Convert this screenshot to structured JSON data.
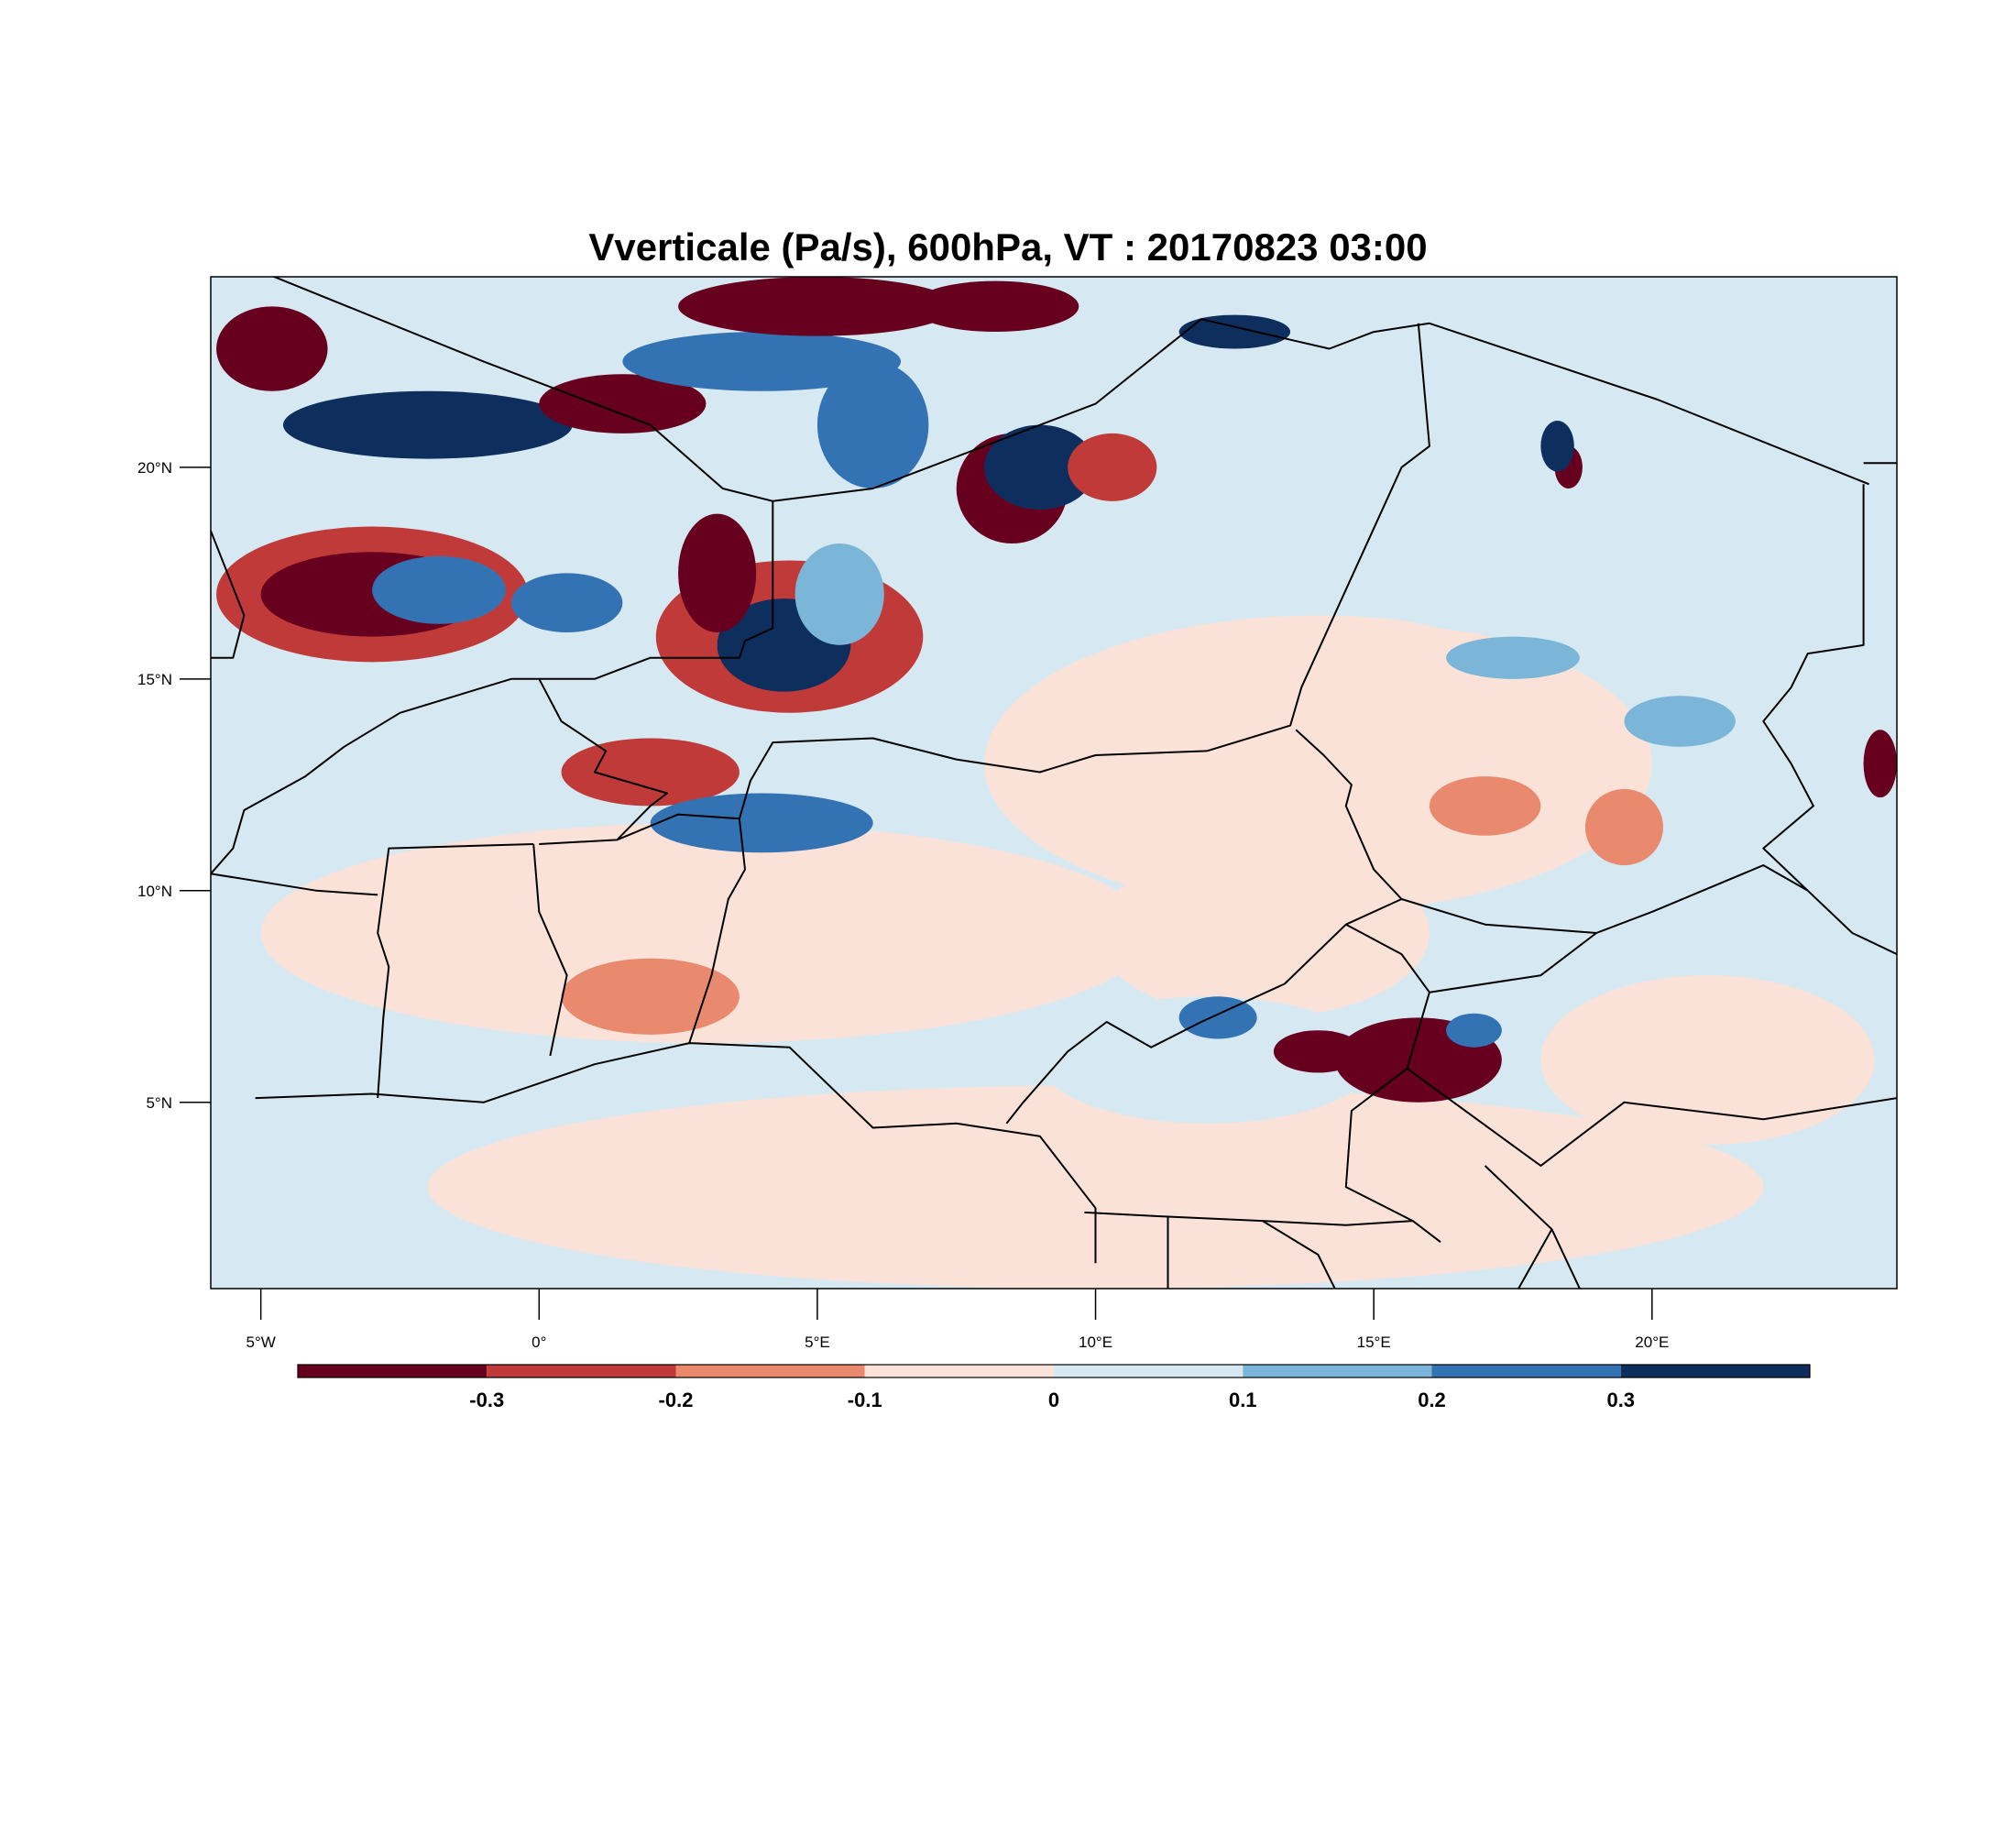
{
  "title": "Vverticale (Pa/s), 600hPa, VT : 20170823  03:00",
  "map": {
    "lon_range": [
      -5.9,
      24.4
    ],
    "lat_range": [
      0.6,
      24.5
    ],
    "lat_ticks": [
      {
        "value": 5,
        "label": "5°N"
      },
      {
        "value": 10,
        "label": "10°N"
      },
      {
        "value": 15,
        "label": "15°N"
      },
      {
        "value": 20,
        "label": "20°N"
      }
    ],
    "lon_ticks": [
      {
        "value": -5,
        "label": "5°W"
      },
      {
        "value": 0,
        "label": "0°"
      },
      {
        "value": 5,
        "label": "5°E"
      },
      {
        "value": 10,
        "label": "10°E"
      },
      {
        "value": 15,
        "label": "15°E"
      },
      {
        "value": 20,
        "label": "20°E"
      }
    ],
    "field_background": "#d6e8f1",
    "field_patches": [
      {
        "lon": 10.0,
        "lat": 3.0,
        "rx": 12.0,
        "ry": 2.4,
        "level": 4
      },
      {
        "lon": 3.0,
        "lat": 9.0,
        "rx": 8.0,
        "ry": 2.6,
        "level": 4
      },
      {
        "lon": 14.0,
        "lat": 13.0,
        "rx": 6.0,
        "ry": 3.5,
        "level": 4
      },
      {
        "lon": 13.0,
        "lat": 9.0,
        "rx": 3.0,
        "ry": 2.0,
        "level": 4
      },
      {
        "lon": 21.0,
        "lat": 6.0,
        "rx": 3.0,
        "ry": 2.0,
        "level": 4
      },
      {
        "lon": 2.0,
        "lat": 7.5,
        "rx": 1.6,
        "ry": 0.9,
        "level": 3
      },
      {
        "lon": 17.0,
        "lat": 12.0,
        "rx": 1.0,
        "ry": 0.7,
        "level": 3
      },
      {
        "lon": 19.5,
        "lat": 11.5,
        "rx": 0.7,
        "ry": 0.9,
        "level": 3
      },
      {
        "lon": 0.5,
        "lat": 17.0,
        "rx": 5.0,
        "ry": 4.0,
        "level": 5
      },
      {
        "lon": 18.0,
        "lat": 19.0,
        "rx": 5.0,
        "ry": 3.0,
        "level": 5
      },
      {
        "lon": 12.0,
        "lat": 6.0,
        "rx": 3.0,
        "ry": 1.5,
        "level": 5
      },
      {
        "lon": -3.0,
        "lat": 17.0,
        "rx": 2.8,
        "ry": 1.6,
        "level": 2
      },
      {
        "lon": -3.0,
        "lat": 17.0,
        "rx": 2.0,
        "ry": 1.0,
        "level": 1
      },
      {
        "lon": -1.8,
        "lat": 17.1,
        "rx": 1.2,
        "ry": 0.8,
        "level": 7
      },
      {
        "lon": 0.5,
        "lat": 16.8,
        "rx": 1.0,
        "ry": 0.7,
        "level": 7
      },
      {
        "lon": 4.5,
        "lat": 16.0,
        "rx": 2.4,
        "ry": 1.8,
        "level": 2
      },
      {
        "lon": 4.4,
        "lat": 15.8,
        "rx": 1.2,
        "ry": 1.1,
        "level": 8
      },
      {
        "lon": 5.4,
        "lat": 17.0,
        "rx": 0.8,
        "ry": 1.2,
        "level": 6
      },
      {
        "lon": 3.2,
        "lat": 17.5,
        "rx": 0.7,
        "ry": 1.4,
        "level": 1
      },
      {
        "lon": 2.0,
        "lat": 12.8,
        "rx": 1.6,
        "ry": 0.8,
        "level": 2
      },
      {
        "lon": 4.0,
        "lat": 11.6,
        "rx": 2.0,
        "ry": 0.7,
        "level": 7
      },
      {
        "lon": -4.8,
        "lat": 22.8,
        "rx": 1.0,
        "ry": 1.0,
        "level": 1
      },
      {
        "lon": -2.0,
        "lat": 21.0,
        "rx": 2.6,
        "ry": 0.8,
        "level": 8
      },
      {
        "lon": 1.5,
        "lat": 21.5,
        "rx": 1.5,
        "ry": 0.7,
        "level": 1
      },
      {
        "lon": 4.0,
        "lat": 22.5,
        "rx": 2.5,
        "ry": 0.7,
        "level": 7
      },
      {
        "lon": 5.0,
        "lat": 23.8,
        "rx": 2.5,
        "ry": 0.7,
        "level": 1
      },
      {
        "lon": 6.0,
        "lat": 21.0,
        "rx": 1.0,
        "ry": 1.5,
        "level": 7
      },
      {
        "lon": 8.5,
        "lat": 19.5,
        "rx": 1.0,
        "ry": 1.3,
        "level": 1
      },
      {
        "lon": 9.0,
        "lat": 20.0,
        "rx": 1.0,
        "ry": 1.0,
        "level": 8
      },
      {
        "lon": 10.3,
        "lat": 20.0,
        "rx": 0.8,
        "ry": 0.8,
        "level": 2
      },
      {
        "lon": 12.5,
        "lat": 23.2,
        "rx": 1.0,
        "ry": 0.4,
        "level": 8
      },
      {
        "lon": 8.2,
        "lat": 23.8,
        "rx": 1.5,
        "ry": 0.6,
        "level": 1
      },
      {
        "lon": 15.8,
        "lat": 6.0,
        "rx": 1.5,
        "ry": 1.0,
        "level": 1
      },
      {
        "lon": 14.0,
        "lat": 6.2,
        "rx": 0.8,
        "ry": 0.5,
        "level": 1
      },
      {
        "lon": 12.2,
        "lat": 7.0,
        "rx": 0.7,
        "ry": 0.5,
        "level": 7
      },
      {
        "lon": 16.8,
        "lat": 6.7,
        "rx": 0.5,
        "ry": 0.4,
        "level": 7
      },
      {
        "lon": 17.5,
        "lat": 15.5,
        "rx": 1.2,
        "ry": 0.5,
        "level": 6
      },
      {
        "lon": 20.5,
        "lat": 14.0,
        "rx": 1.0,
        "ry": 0.6,
        "level": 6
      },
      {
        "lon": 18.5,
        "lat": 20.0,
        "rx": 0.25,
        "ry": 0.5,
        "level": 1
      },
      {
        "lon": 18.3,
        "lat": 20.5,
        "rx": 0.3,
        "ry": 0.6,
        "level": 8
      },
      {
        "lon": 24.1,
        "lat": 13.0,
        "rx": 0.3,
        "ry": 0.8,
        "level": 1
      }
    ],
    "boundaries": [
      [
        [
          -5.1,
          5.1
        ],
        [
          -3,
          5.2
        ],
        [
          -1,
          5.0
        ],
        [
          1,
          5.9
        ],
        [
          2.7,
          6.4
        ],
        [
          4.5,
          6.3
        ],
        [
          6,
          4.4
        ],
        [
          7.5,
          4.5
        ],
        [
          9,
          4.2
        ],
        [
          10,
          2.5
        ],
        [
          10,
          1.2
        ]
      ],
      [
        [
          -0.1,
          11.1
        ],
        [
          0,
          9.5
        ],
        [
          0.5,
          8.0
        ],
        [
          0.2,
          6.1
        ]
      ],
      [
        [
          -2.9,
          5.1
        ],
        [
          -2.8,
          7.0
        ],
        [
          -2.7,
          8.2
        ],
        [
          -2.9,
          9.0
        ],
        [
          -2.7,
          11.0
        ],
        [
          -0.1,
          11.1
        ]
      ],
      [
        [
          0,
          11.1
        ],
        [
          1.4,
          11.2
        ],
        [
          2.5,
          11.8
        ],
        [
          3.6,
          11.7
        ],
        [
          3.7,
          10.5
        ],
        [
          3.4,
          9.8
        ],
        [
          3.1,
          8.0
        ],
        [
          2.7,
          6.4
        ]
      ],
      [
        [
          -5.9,
          10.4
        ],
        [
          -4,
          10.0
        ],
        [
          -2.9,
          9.9
        ]
      ],
      [
        [
          -5.9,
          15.5
        ],
        [
          -5.5,
          15.5
        ],
        [
          -5.3,
          16.5
        ],
        [
          -5.9,
          18.5
        ]
      ],
      [
        [
          -5.7,
          25.0
        ],
        [
          -1.0,
          22.5
        ],
        [
          2.0,
          21.0
        ],
        [
          3.3,
          19.5
        ],
        [
          4.2,
          19.2
        ],
        [
          6.0,
          19.5
        ],
        [
          10,
          21.5
        ],
        [
          11.9,
          23.5
        ],
        [
          14.2,
          22.8
        ],
        [
          15.0,
          23.2
        ],
        [
          16.0,
          23.4
        ],
        [
          20.1,
          21.6
        ],
        [
          23.9,
          19.6
        ]
      ],
      [
        [
          4.2,
          19.2
        ],
        [
          4.2,
          16.2
        ],
        [
          3.7,
          15.9
        ],
        [
          3.6,
          15.5
        ],
        [
          2.0,
          15.5
        ],
        [
          1.0,
          15.0
        ],
        [
          0,
          15.0
        ],
        [
          -0.5,
          15.0
        ],
        [
          -1.5,
          14.6
        ],
        [
          -2.5,
          14.2
        ],
        [
          -3.5,
          13.4
        ],
        [
          -4.2,
          12.7
        ],
        [
          -5.3,
          11.9
        ],
        [
          -5.5,
          11.0
        ],
        [
          -5.9,
          10.4
        ]
      ],
      [
        [
          0,
          15.0
        ],
        [
          0.4,
          14.0
        ],
        [
          1.2,
          13.3
        ],
        [
          1.0,
          12.8
        ],
        [
          2.3,
          12.3
        ],
        [
          2.0,
          12.0
        ],
        [
          1.4,
          11.2
        ]
      ],
      [
        [
          3.6,
          11.7
        ],
        [
          3.8,
          12.6
        ],
        [
          4.2,
          13.5
        ],
        [
          6.0,
          13.6
        ],
        [
          7.5,
          13.1
        ],
        [
          9.0,
          12.8
        ],
        [
          10.0,
          13.2
        ],
        [
          12.0,
          13.3
        ],
        [
          13.5,
          13.9
        ],
        [
          13.7,
          14.8
        ],
        [
          15.5,
          20.0
        ],
        [
          16.0,
          20.5
        ],
        [
          15.8,
          23.4
        ]
      ],
      [
        [
          13.6,
          13.8
        ],
        [
          14.1,
          13.2
        ],
        [
          14.6,
          12.5
        ],
        [
          14.5,
          12.0
        ],
        [
          15.0,
          10.5
        ],
        [
          15.5,
          9.8
        ],
        [
          14.5,
          9.2
        ],
        [
          13.4,
          7.8
        ],
        [
          11.9,
          6.9
        ],
        [
          11.0,
          6.3
        ],
        [
          10.2,
          6.9
        ],
        [
          9.5,
          6.2
        ],
        [
          8.7,
          5.0
        ],
        [
          8.4,
          4.5
        ]
      ],
      [
        [
          14.5,
          9.2
        ],
        [
          15.5,
          8.5
        ],
        [
          16.0,
          7.6
        ],
        [
          15.6,
          5.8
        ],
        [
          14.6,
          4.8
        ],
        [
          14.5,
          3.0
        ],
        [
          15.7,
          2.2
        ],
        [
          16.2,
          1.7
        ]
      ],
      [
        [
          15.5,
          9.8
        ],
        [
          17.0,
          9.2
        ],
        [
          19.0,
          9.0
        ],
        [
          20.0,
          9.5
        ],
        [
          22.0,
          10.6
        ],
        [
          22.8,
          10.0
        ],
        [
          23.6,
          9.0
        ],
        [
          24.4,
          8.5
        ]
      ],
      [
        [
          16.0,
          7.6
        ],
        [
          18.0,
          8.0
        ],
        [
          19.0,
          9.0
        ]
      ],
      [
        [
          15.6,
          5.8
        ],
        [
          18.0,
          3.5
        ],
        [
          19.5,
          5.0
        ],
        [
          22.0,
          4.6
        ],
        [
          24.4,
          5.1
        ]
      ],
      [
        [
          9.8,
          2.4
        ],
        [
          11.3,
          2.3
        ],
        [
          13.0,
          2.2
        ],
        [
          14.5,
          2.1
        ],
        [
          15.7,
          2.2
        ]
      ],
      [
        [
          11.3,
          2.3
        ],
        [
          11.3,
          0.6
        ]
      ],
      [
        [
          13.0,
          2.2
        ],
        [
          14.0,
          1.4
        ],
        [
          14.3,
          0.6
        ]
      ],
      [
        [
          17.0,
          3.5
        ],
        [
          18.2,
          2.0
        ],
        [
          18.7,
          0.6
        ]
      ],
      [
        [
          18.2,
          2.0
        ],
        [
          17.6,
          0.6
        ]
      ],
      [
        [
          23.8,
          19.6
        ],
        [
          23.8,
          15.8
        ],
        [
          22.8,
          15.6
        ],
        [
          22.5,
          14.8
        ],
        [
          22.0,
          14.0
        ],
        [
          22.5,
          13.0
        ],
        [
          22.9,
          12.0
        ],
        [
          22.0,
          11.0
        ],
        [
          22.8,
          10.0
        ]
      ],
      [
        [
          23.8,
          20.1
        ],
        [
          24.4,
          20.1
        ]
      ]
    ]
  },
  "colorbar": {
    "colors": [
      "#67001f",
      "#c03a3a",
      "#e9896e",
      "#fbe2d8",
      "#d6e8f1",
      "#7bb5d7",
      "#3373b3",
      "#0e2f5e"
    ],
    "tick_labels": [
      "-0.3",
      "-0.2",
      "-0.1",
      "0",
      "0.1",
      "0.2",
      "0.3"
    ]
  }
}
